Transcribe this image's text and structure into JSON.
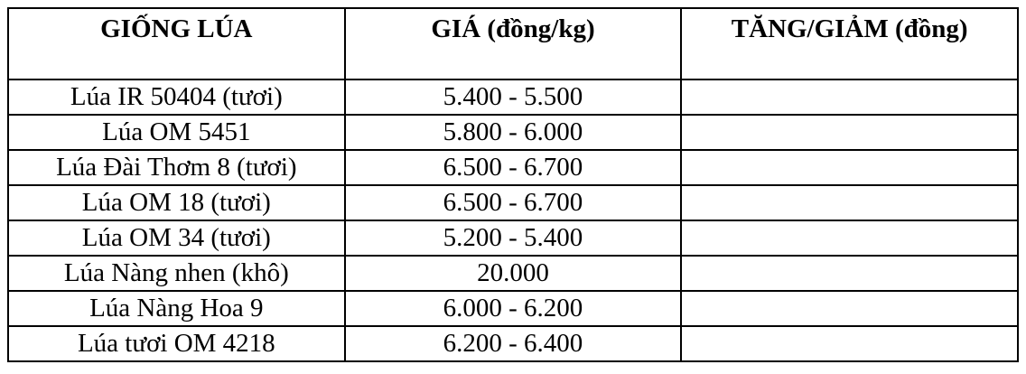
{
  "colors": {
    "background": "#ffffff",
    "border": "#000000",
    "text": "#000000"
  },
  "chart_data": {
    "type": "table",
    "title": "",
    "columns": [
      "GIỐNG LÚA",
      "GIÁ (đồng/kg)",
      "TĂNG/GIẢM (đồng)"
    ],
    "rows": [
      [
        "Lúa IR 50404 (tươi)",
        "5.400 - 5.500",
        ""
      ],
      [
        "Lúa OM 5451",
        "5.800 - 6.000",
        ""
      ],
      [
        "Lúa Đài Thơm 8 (tươi)",
        "6.500 - 6.700",
        ""
      ],
      [
        "Lúa OM 18 (tươi)",
        "6.500 - 6.700",
        ""
      ],
      [
        "Lúa OM 34 (tươi)",
        "5.200 - 5.400",
        ""
      ],
      [
        "Lúa Nàng nhen (khô)",
        "20.000",
        ""
      ],
      [
        "Lúa Nàng Hoa 9",
        "6.000 - 6.200",
        ""
      ],
      [
        "Lúa tươi OM 4218",
        "6.200 - 6.400",
        ""
      ]
    ],
    "notes": "Rice variety price table; change column (TĂNG/GIẢM) is blank for all rows"
  }
}
